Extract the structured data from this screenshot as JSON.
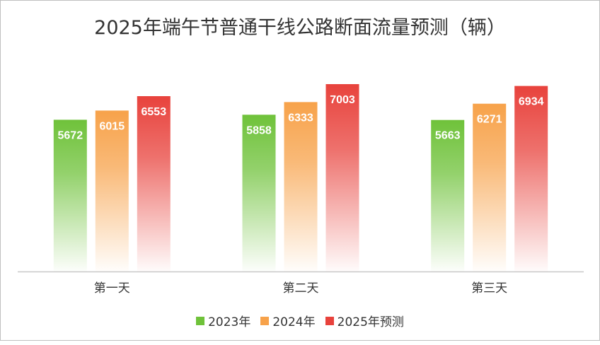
{
  "colors": {
    "series_top": [
      "#6fc23a",
      "#f7a24a",
      "#e8423c"
    ],
    "axis": "#c8c8c8",
    "text": "#333333"
  },
  "chart_data": {
    "type": "bar",
    "title": "2025年端午节普通干线公路断面流量预测（辆）",
    "categories": [
      "第一天",
      "第二天",
      "第三天"
    ],
    "series": [
      {
        "name": "2023年",
        "values": [
          5672,
          5858,
          5663
        ]
      },
      {
        "name": "2024年",
        "values": [
          6015,
          6333,
          6271
        ]
      },
      {
        "name": "2025年预测",
        "values": [
          6553,
          7003,
          6934
        ]
      }
    ],
    "legend": "bottom",
    "grid": false,
    "data_labels": true
  }
}
